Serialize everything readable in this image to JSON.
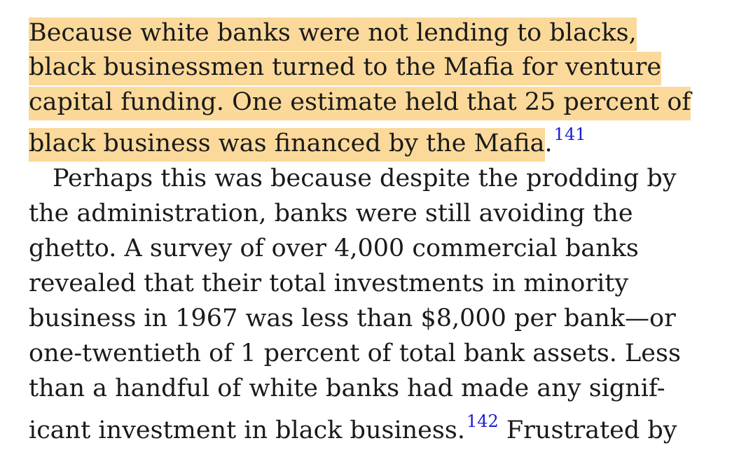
{
  "paragraph1": {
    "line1": " Because white banks were not lending to blacks,",
    "line2": "black businessmen turned to the Mafia for venture",
    "line3": "capital funding. One estimate held that 25 percent of",
    "line4": "black business was financed by the Mafia",
    "line4_end": ".",
    "footnote": "141"
  },
  "paragraph2": {
    "line1": "Perhaps this was because despite the prodding by",
    "line2": "the administration, banks were still avoiding the",
    "line3": "ghetto. A survey of over 4,000 commercial banks",
    "line4": "revealed that their total investments in minority",
    "line5": "business in 1967 was less than $8,000 per bank—or",
    "line6": "one-twentieth of 1 percent of total bank assets. Less",
    "line7": "than a handful of white banks had made any signif-",
    "line8": "icant investment in black business.",
    "footnote": "142",
    "line8_tail": " Frustrated by"
  },
  "colors": {
    "highlight": "#fbd99a",
    "footnote_link": "#1a1ad6",
    "text": "#1a1a1a"
  }
}
